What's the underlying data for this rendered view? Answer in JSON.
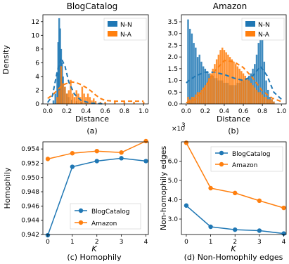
{
  "colors": {
    "nn": "#1f77b4",
    "na": "#ff7f0e"
  },
  "chart_data": [
    {
      "type": "histogram",
      "title": "BlogCatalog",
      "xlabel": "Distance",
      "ylabel": "Density",
      "caption": "(a)",
      "xlim": [
        -0.05,
        1.05
      ],
      "ylim": [
        0,
        13
      ],
      "xticks": [
        0.0,
        0.2,
        0.4,
        0.6,
        0.8,
        1.0
      ],
      "xtick_labels": [
        "0.0",
        "0.2",
        "0.4",
        "0.6",
        "0.8",
        "1.0"
      ],
      "yticks": [
        0,
        2,
        4,
        6,
        8,
        10,
        12
      ],
      "ytick_labels": [
        "0",
        "2",
        "4",
        "6",
        "8",
        "10",
        "12"
      ],
      "legend": [
        "N-N",
        "N-A"
      ],
      "legend_position": "top-right",
      "series": [
        {
          "name": "N-N",
          "bins": [
            [
              0.06,
              0.5
            ],
            [
              0.08,
              1.5
            ],
            [
              0.1,
              4.5
            ],
            [
              0.11,
              9.0
            ],
            [
              0.12,
              12.5
            ],
            [
              0.13,
              11.0
            ],
            [
              0.14,
              8.0
            ],
            [
              0.15,
              6.0
            ],
            [
              0.16,
              4.0
            ],
            [
              0.18,
              2.5
            ],
            [
              0.2,
              1.5
            ],
            [
              0.22,
              1.0
            ],
            [
              0.25,
              0.6
            ],
            [
              0.3,
              0.4
            ],
            [
              0.35,
              0.3
            ],
            [
              0.4,
              0.2
            ]
          ],
          "kde": [
            [
              0.0,
              0.2
            ],
            [
              0.05,
              1.2
            ],
            [
              0.1,
              4.8
            ],
            [
              0.14,
              6.7
            ],
            [
              0.18,
              5.5
            ],
            [
              0.22,
              3.2
            ],
            [
              0.28,
              1.4
            ],
            [
              0.35,
              0.5
            ],
            [
              0.45,
              0.1
            ],
            [
              0.6,
              0.0
            ]
          ]
        },
        {
          "name": "N-A",
          "bins": [
            [
              0.1,
              1.0
            ],
            [
              0.12,
              2.0
            ],
            [
              0.14,
              5.5
            ],
            [
              0.16,
              3.0
            ],
            [
              0.18,
              2.5
            ],
            [
              0.2,
              1.5
            ],
            [
              0.22,
              2.0
            ],
            [
              0.24,
              3.5
            ],
            [
              0.26,
              1.5
            ],
            [
              0.28,
              1.0
            ],
            [
              0.3,
              2.0
            ],
            [
              0.32,
              1.5
            ],
            [
              0.34,
              1.0
            ],
            [
              0.36,
              2.5
            ],
            [
              0.38,
              1.5
            ],
            [
              0.4,
              1.0
            ],
            [
              0.42,
              1.5
            ],
            [
              0.44,
              1.0
            ],
            [
              0.46,
              0.5
            ],
            [
              0.48,
              0.8
            ],
            [
              0.5,
              0.4
            ],
            [
              0.55,
              0.3
            ],
            [
              0.6,
              0.3
            ],
            [
              0.7,
              0.3
            ],
            [
              0.8,
              0.3
            ],
            [
              0.9,
              0.3
            ],
            [
              1.0,
              0.3
            ]
          ],
          "kde": [
            [
              0.0,
              0.8
            ],
            [
              0.05,
              1.3
            ],
            [
              0.1,
              2.0
            ],
            [
              0.15,
              2.7
            ],
            [
              0.2,
              3.0
            ],
            [
              0.25,
              3.2
            ],
            [
              0.3,
              3.1
            ],
            [
              0.35,
              2.8
            ],
            [
              0.4,
              2.4
            ],
            [
              0.45,
              1.9
            ],
            [
              0.5,
              1.3
            ],
            [
              0.55,
              0.8
            ],
            [
              0.6,
              0.5
            ],
            [
              0.7,
              0.4
            ],
            [
              0.85,
              0.4
            ],
            [
              1.0,
              0.4
            ]
          ]
        }
      ]
    },
    {
      "type": "histogram",
      "title": "Amazon",
      "xlabel": "Distance",
      "caption": "(b)",
      "xlim": [
        -0.05,
        1.05
      ],
      "ylim": [
        0,
        3.8
      ],
      "xticks": [
        0.0,
        0.2,
        0.4,
        0.6,
        0.8,
        1.0
      ],
      "xtick_labels": [
        "0.0",
        "0.2",
        "0.4",
        "0.6",
        "0.8",
        "1.0"
      ],
      "yticks": [
        0.0,
        0.5,
        1.0,
        1.5,
        2.0,
        2.5,
        3.0,
        3.5
      ],
      "ytick_labels": [
        "0.0",
        "0.5",
        "1.0",
        "1.5",
        "2.0",
        "2.5",
        "3.0",
        "3.5"
      ],
      "legend": [
        "N-N",
        "N-A"
      ],
      "legend_position": "top-right",
      "series": [
        {
          "name": "N-N",
          "bins": [
            [
              0.02,
              3.6
            ],
            [
              0.04,
              3.2
            ],
            [
              0.06,
              3.0
            ],
            [
              0.08,
              2.6
            ],
            [
              0.1,
              2.4
            ],
            [
              0.12,
              2.0
            ],
            [
              0.14,
              2.1
            ],
            [
              0.16,
              1.8
            ],
            [
              0.18,
              1.6
            ],
            [
              0.2,
              1.5
            ],
            [
              0.22,
              1.4
            ],
            [
              0.24,
              1.3
            ],
            [
              0.26,
              1.2
            ],
            [
              0.28,
              1.2
            ],
            [
              0.3,
              1.1
            ],
            [
              0.32,
              1.1
            ],
            [
              0.34,
              1.0
            ],
            [
              0.36,
              1.0
            ],
            [
              0.38,
              1.0
            ],
            [
              0.4,
              0.9
            ],
            [
              0.42,
              0.9
            ],
            [
              0.44,
              0.9
            ],
            [
              0.46,
              0.8
            ],
            [
              0.48,
              0.8
            ],
            [
              0.5,
              0.8
            ],
            [
              0.52,
              0.8
            ],
            [
              0.54,
              0.9
            ],
            [
              0.56,
              0.9
            ],
            [
              0.58,
              1.0
            ],
            [
              0.6,
              1.0
            ],
            [
              0.62,
              1.1
            ],
            [
              0.64,
              1.1
            ],
            [
              0.66,
              1.2
            ],
            [
              0.68,
              1.3
            ],
            [
              0.7,
              1.5
            ],
            [
              0.72,
              1.7
            ],
            [
              0.74,
              2.1
            ],
            [
              0.76,
              2.6
            ],
            [
              0.78,
              3.2
            ],
            [
              0.8,
              2.8
            ],
            [
              0.82,
              1.8
            ],
            [
              0.84,
              1.0
            ],
            [
              0.86,
              0.6
            ],
            [
              0.88,
              0.3
            ],
            [
              0.9,
              0.2
            ],
            [
              0.92,
              0.1
            ]
          ],
          "kde": [
            [
              0.0,
              0.9
            ],
            [
              0.1,
              1.2
            ],
            [
              0.2,
              1.35
            ],
            [
              0.3,
              1.35
            ],
            [
              0.4,
              1.25
            ],
            [
              0.5,
              1.1
            ],
            [
              0.6,
              1.0
            ],
            [
              0.7,
              1.2
            ],
            [
              0.78,
              1.6
            ],
            [
              0.85,
              1.2
            ],
            [
              0.92,
              0.5
            ],
            [
              1.0,
              0.2
            ]
          ]
        },
        {
          "name": "N-A",
          "bins": [
            [
              0.02,
              0.3
            ],
            [
              0.04,
              0.2
            ],
            [
              0.06,
              0.3
            ],
            [
              0.08,
              0.3
            ],
            [
              0.1,
              0.4
            ],
            [
              0.12,
              0.5
            ],
            [
              0.14,
              0.5
            ],
            [
              0.16,
              0.6
            ],
            [
              0.18,
              0.7
            ],
            [
              0.2,
              0.8
            ],
            [
              0.22,
              0.9
            ],
            [
              0.24,
              1.1
            ],
            [
              0.26,
              1.3
            ],
            [
              0.28,
              1.5
            ],
            [
              0.3,
              1.7
            ],
            [
              0.32,
              1.9
            ],
            [
              0.34,
              2.1
            ],
            [
              0.36,
              2.3
            ],
            [
              0.38,
              2.4
            ],
            [
              0.4,
              2.3
            ],
            [
              0.42,
              2.2
            ],
            [
              0.44,
              2.1
            ],
            [
              0.46,
              2.0
            ],
            [
              0.48,
              1.9
            ],
            [
              0.5,
              1.8
            ],
            [
              0.52,
              1.7
            ],
            [
              0.54,
              1.6
            ],
            [
              0.56,
              1.5
            ],
            [
              0.58,
              1.4
            ],
            [
              0.6,
              1.3
            ],
            [
              0.62,
              1.2
            ],
            [
              0.64,
              1.1
            ],
            [
              0.66,
              1.0
            ],
            [
              0.68,
              0.9
            ],
            [
              0.7,
              0.8
            ],
            [
              0.72,
              0.7
            ],
            [
              0.74,
              0.6
            ],
            [
              0.76,
              0.5
            ],
            [
              0.78,
              0.5
            ],
            [
              0.8,
              0.4
            ],
            [
              0.82,
              0.3
            ],
            [
              0.84,
              0.3
            ],
            [
              0.86,
              0.2
            ],
            [
              0.88,
              0.2
            ],
            [
              0.9,
              0.2
            ],
            [
              0.92,
              0.1
            ]
          ],
          "kde": [
            [
              0.0,
              0.05
            ],
            [
              0.1,
              0.2
            ],
            [
              0.2,
              0.7
            ],
            [
              0.3,
              1.4
            ],
            [
              0.4,
              1.85
            ],
            [
              0.5,
              1.8
            ],
            [
              0.6,
              1.55
            ],
            [
              0.7,
              1.1
            ],
            [
              0.8,
              0.55
            ],
            [
              0.9,
              0.25
            ],
            [
              1.0,
              0.1
            ]
          ]
        }
      ]
    },
    {
      "type": "line",
      "caption": "(c) Homophily",
      "xlabel": "K",
      "ylabel": "Homophily",
      "xlim": [
        -0.2,
        4.1
      ],
      "ylim": [
        0.942,
        0.955
      ],
      "xticks": [
        0,
        1,
        2,
        3,
        4
      ],
      "xtick_labels": [
        "0",
        "1",
        "2",
        "3",
        "4"
      ],
      "yticks": [
        0.942,
        0.944,
        0.946,
        0.948,
        0.95,
        0.952,
        0.954
      ],
      "ytick_labels": [
        "0.942",
        "0.944",
        "0.946",
        "0.948",
        "0.950",
        "0.952",
        "0.954"
      ],
      "legend": [
        "BlogCatalog",
        "Amazon"
      ],
      "legend_position": "lower-right",
      "x": [
        0,
        1,
        2,
        3,
        4
      ],
      "series": [
        {
          "name": "BlogCatalog",
          "values": [
            0.9419,
            0.9515,
            0.9523,
            0.9527,
            0.9523
          ]
        },
        {
          "name": "Amazon",
          "values": [
            0.9526,
            0.9534,
            0.9537,
            0.9535,
            0.9551
          ]
        }
      ]
    },
    {
      "type": "line",
      "caption": "(d) Non-Homophily edges",
      "xlabel": "K",
      "ylabel": "Non-homophily edges",
      "multiplier": "×10",
      "multiplier_exp": "3",
      "xlim": [
        -0.2,
        4.1
      ],
      "ylim": [
        2.2,
        7.0
      ],
      "xticks": [
        0,
        1,
        2,
        3,
        4
      ],
      "xtick_labels": [
        "0",
        "1",
        "2",
        "3",
        "4"
      ],
      "yticks": [
        3,
        4,
        5,
        6
      ],
      "ytick_labels": [
        "3.0",
        "4.0",
        "5.0",
        "6.0"
      ],
      "legend": [
        "BlogCatalog",
        "Amazon"
      ],
      "legend_position": "top-right",
      "x": [
        0,
        1,
        2,
        3,
        4
      ],
      "series": [
        {
          "name": "BlogCatalog",
          "values": [
            3.7,
            2.6,
            2.45,
            2.4,
            2.25
          ]
        },
        {
          "name": "Amazon",
          "values": [
            6.95,
            4.6,
            4.35,
            3.95,
            3.58
          ]
        }
      ]
    }
  ]
}
